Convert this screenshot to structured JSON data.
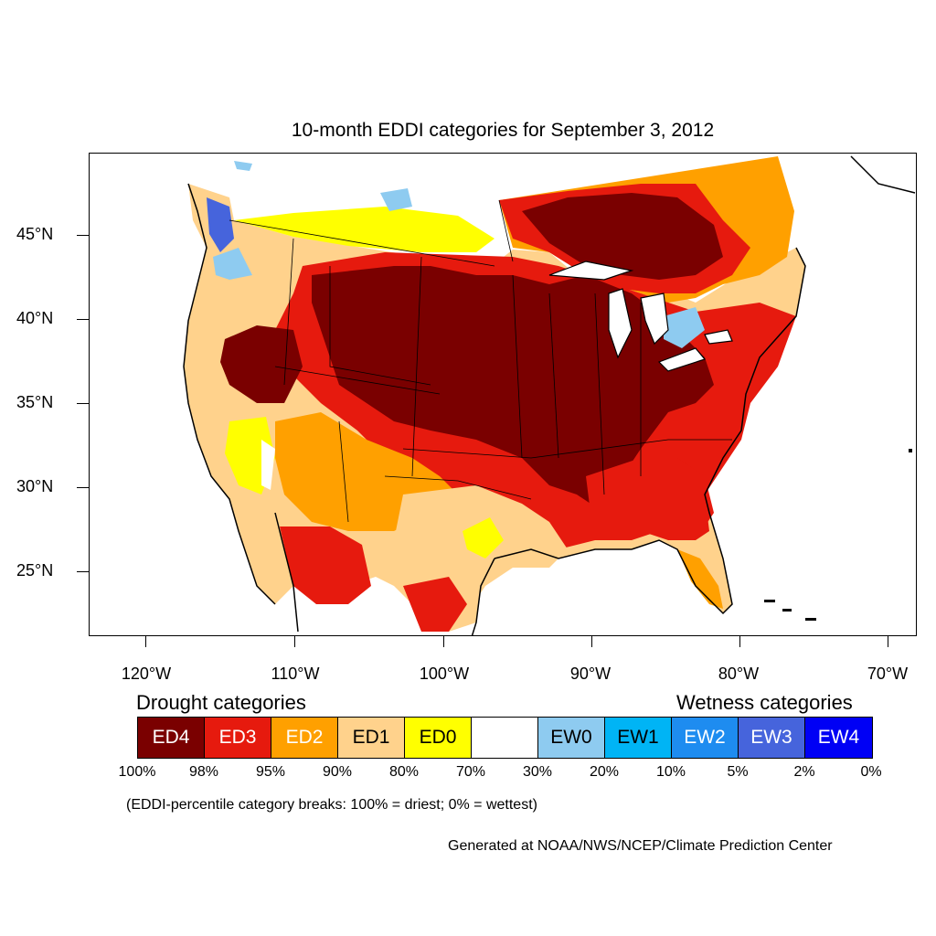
{
  "title": "10-month EDDI categories for September 3, 2012",
  "axes": {
    "lat_labels": [
      "45°N",
      "40°N",
      "35°N",
      "30°N",
      "25°N"
    ],
    "lon_labels": [
      "120°W",
      "110°W",
      "100°W",
      "90°W",
      "80°W",
      "70°W"
    ]
  },
  "legend": {
    "drought_title": "Drought categories",
    "wetness_title": "Wetness categories",
    "categories": [
      {
        "label": "ED4",
        "color": "#7a0000",
        "text_color": "#ffffff"
      },
      {
        "label": "ED3",
        "color": "#e61a0e",
        "text_color": "#ffffff"
      },
      {
        "label": "ED2",
        "color": "#ffa000",
        "text_color": "#ffffff"
      },
      {
        "label": "ED1",
        "color": "#ffd28c",
        "text_color": "#000000"
      },
      {
        "label": "ED0",
        "color": "#ffff00",
        "text_color": "#000000"
      },
      {
        "label": "",
        "color": "#ffffff",
        "text_color": "#000000"
      },
      {
        "label": "EW0",
        "color": "#8ecbf0",
        "text_color": "#000000"
      },
      {
        "label": "EW1",
        "color": "#00b4f5",
        "text_color": "#000000"
      },
      {
        "label": "EW2",
        "color": "#1e8cf0",
        "text_color": "#ffffff"
      },
      {
        "label": "EW3",
        "color": "#4664dc",
        "text_color": "#ffffff"
      },
      {
        "label": "EW4",
        "color": "#0000f5",
        "text_color": "#ffffff"
      }
    ],
    "breaks": [
      "100%",
      "98%",
      "95%",
      "90%",
      "80%",
      "70%",
      "30%",
      "20%",
      "10%",
      "5%",
      "2%",
      "0%"
    ]
  },
  "note": "(EDDI-percentile category breaks: 100% = driest; 0% = wettest)",
  "credit": "Generated at NOAA/NWS/NCEP/Climate Prediction Center"
}
